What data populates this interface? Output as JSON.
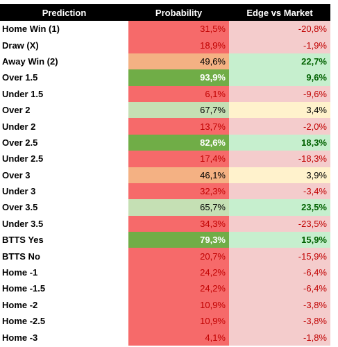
{
  "table": {
    "header": [
      "Prediction",
      "Probability",
      "Edge vs Market"
    ],
    "rows": [
      {
        "prediction": "Home Win (1)",
        "probability": "31,5%",
        "edge": "-20,8%",
        "probability_fill": "#f66a6a",
        "edge_fill": "#f4cccc"
      },
      {
        "prediction": "Draw (X)",
        "probability": "18,9%",
        "edge": "-1,9%",
        "probability_fill": "#f66a6a",
        "edge_fill": "#f4cccc"
      },
      {
        "prediction": "Away Win (2)",
        "probability": "49,6%",
        "edge": "22,7%",
        "probability_fill": "#f4b183",
        "edge_fill": "#c6efce"
      },
      {
        "prediction": "Over 1.5",
        "probability": "93,9%",
        "edge": "9,6%",
        "probability_fill": "#70ad47",
        "edge_fill": "#c6efce"
      },
      {
        "prediction": "Under 1.5",
        "probability": "6,1%",
        "edge": "-9,6%",
        "probability_fill": "#f66a6a",
        "edge_fill": "#f4cccc"
      },
      {
        "prediction": "Over 2",
        "probability": "67,7%",
        "edge": "3,4%",
        "probability_fill": "#c5e0b4",
        "edge_fill": "#fff2cc"
      },
      {
        "prediction": "Under 2",
        "probability": "13,7%",
        "edge": "-2,0%",
        "probability_fill": "#f66a6a",
        "edge_fill": "#f4cccc"
      },
      {
        "prediction": "Over 2.5",
        "probability": "82,6%",
        "edge": "18,3%",
        "probability_fill": "#70ad47",
        "edge_fill": "#c6efce"
      },
      {
        "prediction": "Under 2.5",
        "probability": "17,4%",
        "edge": "-18,3%",
        "probability_fill": "#f66a6a",
        "edge_fill": "#f4cccc"
      },
      {
        "prediction": "Over 3",
        "probability": "46,1%",
        "edge": "3,9%",
        "probability_fill": "#f4b183",
        "edge_fill": "#fff2cc"
      },
      {
        "prediction": "Under 3",
        "probability": "32,3%",
        "edge": "-3,4%",
        "probability_fill": "#f66a6a",
        "edge_fill": "#f4cccc"
      },
      {
        "prediction": "Over 3.5",
        "probability": "65,7%",
        "edge": "23,5%",
        "probability_fill": "#c5e0b4",
        "edge_fill": "#c6efce"
      },
      {
        "prediction": "Under 3.5",
        "probability": "34,3%",
        "edge": "-23,5%",
        "probability_fill": "#f66a6a",
        "edge_fill": "#f4cccc"
      },
      {
        "prediction": "BTTS Yes",
        "probability": "79,3%",
        "edge": "15,9%",
        "probability_fill": "#70ad47",
        "edge_fill": "#c6efce"
      },
      {
        "prediction": "BTTS No",
        "probability": "20,7%",
        "edge": "-15,9%",
        "probability_fill": "#f66a6a",
        "edge_fill": "#f4cccc"
      },
      {
        "prediction": "Home -1",
        "probability": "24,2%",
        "edge": "-6,4%",
        "probability_fill": "#f66a6a",
        "edge_fill": "#f4cccc"
      },
      {
        "prediction": "Home -1.5",
        "probability": "24,2%",
        "edge": "-6,4%",
        "probability_fill": "#f66a6a",
        "edge_fill": "#f4cccc"
      },
      {
        "prediction": "Home -2",
        "probability": "10,9%",
        "edge": "-3,8%",
        "probability_fill": "#f66a6a",
        "edge_fill": "#f4cccc"
      },
      {
        "prediction": "Home -2.5",
        "probability": "10,9%",
        "edge": "-3,8%",
        "probability_fill": "#f66a6a",
        "edge_fill": "#f4cccc"
      },
      {
        "prediction": "Home -3",
        "probability": "4,1%",
        "edge": "-1,8%",
        "probability_fill": "#f66a6a",
        "edge_fill": "#f4cccc"
      }
    ]
  }
}
